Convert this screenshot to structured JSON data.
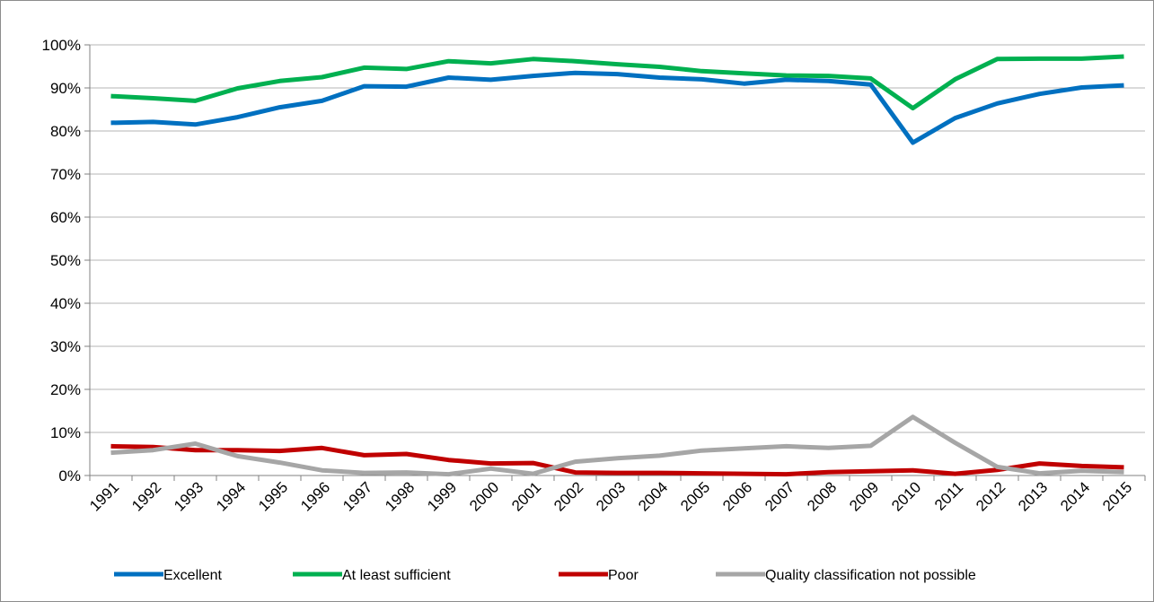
{
  "chart_data": {
    "type": "line",
    "title": "",
    "xlabel": "",
    "ylabel": "",
    "categories": [
      "1991",
      "1992",
      "1993",
      "1994",
      "1995",
      "1996",
      "1997",
      "1998",
      "1999",
      "2000",
      "2001",
      "2002",
      "2003",
      "2004",
      "2005",
      "2006",
      "2007",
      "2008",
      "2009",
      "2010",
      "2011",
      "2012",
      "2013",
      "2014",
      "2015"
    ],
    "y_ticks": [
      "0%",
      "10%",
      "20%",
      "30%",
      "40%",
      "50%",
      "60%",
      "70%",
      "80%",
      "90%",
      "100%"
    ],
    "ylim": [
      0,
      100
    ],
    "y_unit": "%",
    "grid": true,
    "legend_position": "bottom",
    "series": [
      {
        "name": "Excellent",
        "color": "#0070C0",
        "values": [
          81.9,
          82.1,
          81.5,
          83.2,
          85.5,
          87.0,
          90.4,
          90.3,
          92.4,
          91.9,
          92.8,
          93.5,
          93.2,
          92.4,
          92.0,
          91.0,
          91.9,
          91.6,
          90.8,
          77.3,
          83.0,
          86.4,
          88.6,
          90.1,
          90.6
        ]
      },
      {
        "name": "At least sufficient",
        "color": "#00B050",
        "values": [
          88.1,
          87.6,
          87.0,
          89.9,
          91.6,
          92.5,
          94.7,
          94.4,
          96.2,
          95.7,
          96.7,
          96.2,
          95.5,
          94.9,
          93.9,
          93.4,
          92.9,
          92.8,
          92.2,
          85.3,
          92.0,
          96.7,
          96.8,
          96.8,
          97.3
        ]
      },
      {
        "name": "Poor",
        "color": "#C00000",
        "values": [
          6.8,
          6.6,
          5.9,
          5.9,
          5.7,
          6.4,
          4.7,
          5.0,
          3.6,
          2.8,
          2.9,
          0.7,
          0.6,
          0.6,
          0.5,
          0.4,
          0.3,
          0.8,
          1.0,
          1.2,
          0.4,
          1.3,
          2.8,
          2.2,
          1.9
        ]
      },
      {
        "name": "Quality classification not possible",
        "color": "#A6A6A6",
        "values": [
          5.3,
          5.9,
          7.4,
          4.5,
          3.0,
          1.2,
          0.6,
          0.7,
          0.3,
          1.6,
          0.4,
          3.2,
          4.0,
          4.6,
          5.8,
          6.3,
          6.8,
          6.4,
          6.9,
          13.6,
          7.6,
          2.0,
          0.5,
          1.1,
          0.8
        ]
      }
    ]
  }
}
